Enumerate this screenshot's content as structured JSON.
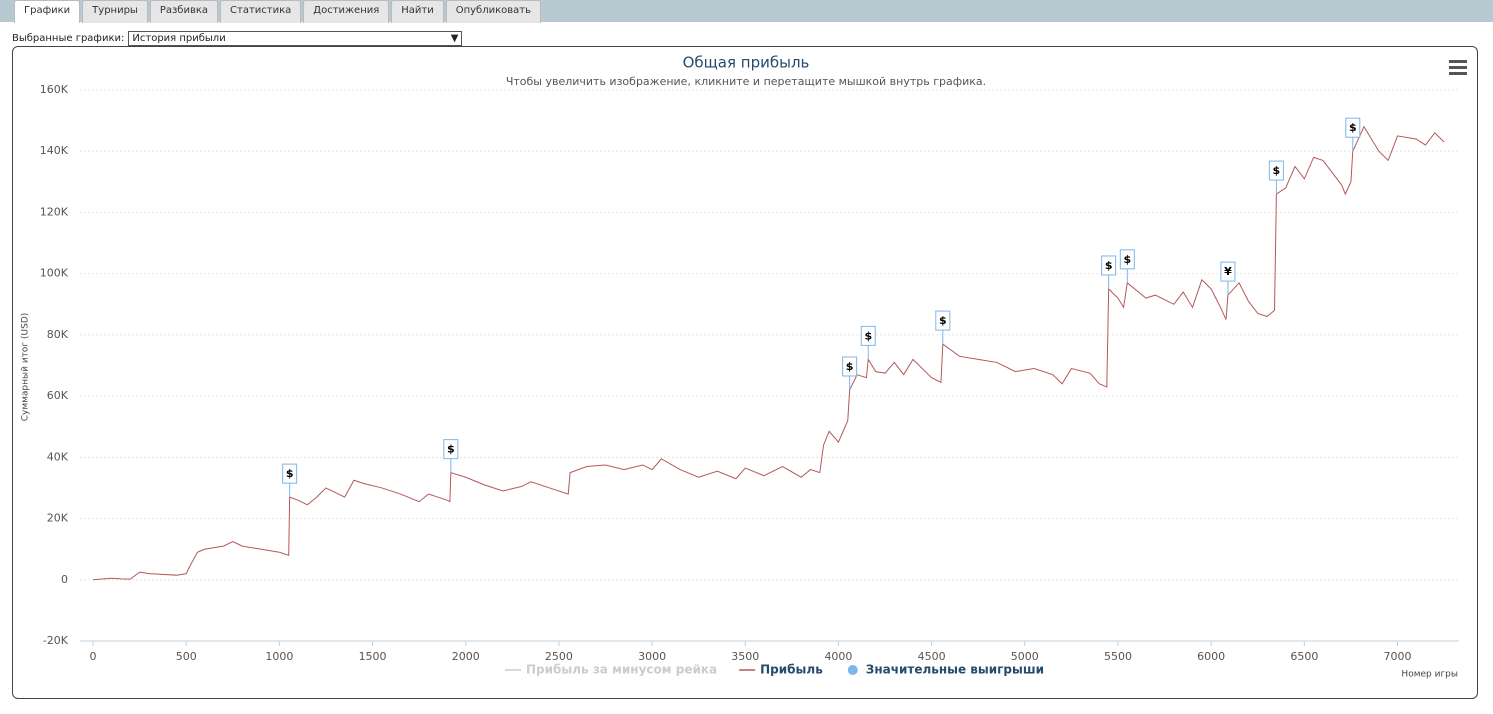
{
  "tabs": [
    "Графики",
    "Турниры",
    "Разбивка",
    "Статистика",
    "Достижения",
    "Найти",
    "Опубликовать"
  ],
  "selector": {
    "label": "Выбранные графики:",
    "value": "История прибыли"
  },
  "chart_data": {
    "type": "line",
    "title": "Общая прибыль",
    "subtitle": "Чтобы увеличить изображение, кликните и перетащите мышкой внутрь графика.",
    "y_label": "Суммарный итог (USD)",
    "x_label": "Номер игры",
    "xlim": [
      -70,
      7330
    ],
    "ylim": [
      -20000,
      160000
    ],
    "xticks": [
      0,
      500,
      1000,
      1500,
      2000,
      2500,
      3000,
      3500,
      4000,
      4500,
      5000,
      5500,
      6000,
      6500,
      7000
    ],
    "yticks": [
      {
        "value": -20000,
        "label": "-20K"
      },
      0,
      {
        "value": 20000,
        "label": "20K"
      },
      {
        "value": 40000,
        "label": "40K"
      },
      {
        "value": 60000,
        "label": "60K"
      },
      {
        "value": 80000,
        "label": "80K"
      },
      {
        "value": 100000,
        "label": "100K"
      },
      {
        "value": 120000,
        "label": "120K"
      },
      {
        "value": 140000,
        "label": "140K"
      },
      {
        "value": 160000,
        "label": "160K"
      }
    ],
    "grid": true,
    "series": [
      {
        "name": "Прибыль за минусом рейка",
        "color": "#cccccc",
        "visible": false
      },
      {
        "name": "Прибыль",
        "color": "#b5585a",
        "x": [
          0,
          100,
          150,
          200,
          250,
          300,
          450,
          500,
          520,
          560,
          600,
          700,
          750,
          800,
          900,
          1000,
          1050,
          1055,
          1100,
          1150,
          1200,
          1250,
          1350,
          1400,
          1450,
          1550,
          1650,
          1750,
          1800,
          1900,
          1915,
          1920,
          2000,
          2100,
          2200,
          2300,
          2350,
          2450,
          2550,
          2560,
          2650,
          2750,
          2850,
          2950,
          3000,
          3050,
          3150,
          3250,
          3350,
          3450,
          3500,
          3600,
          3700,
          3800,
          3850,
          3900,
          3920,
          3950,
          4000,
          4050,
          4060,
          4100,
          4150,
          4160,
          4200,
          4250,
          4300,
          4350,
          4400,
          4500,
          4550,
          4560,
          4650,
          4750,
          4850,
          4950,
          5050,
          5150,
          5200,
          5250,
          5350,
          5400,
          5440,
          5450,
          5500,
          5530,
          5550,
          5650,
          5700,
          5800,
          5850,
          5900,
          5950,
          6000,
          6050,
          6080,
          6090,
          6150,
          6200,
          6250,
          6300,
          6340,
          6350,
          6400,
          6450,
          6500,
          6550,
          6600,
          6700,
          6720,
          6750,
          6760,
          6820,
          6900,
          6950,
          7000,
          7100,
          7150,
          7200,
          7250
        ],
        "values": [
          0,
          500,
          300,
          200,
          2500,
          2000,
          1500,
          2000,
          4500,
          9000,
          10000,
          11000,
          12500,
          11000,
          10000,
          9000,
          8000,
          27000,
          26000,
          24500,
          27000,
          30000,
          27000,
          32500,
          31500,
          30000,
          28000,
          25500,
          28000,
          26000,
          25500,
          35000,
          33500,
          31000,
          29000,
          30500,
          32000,
          30000,
          28000,
          35000,
          37000,
          37500,
          36000,
          37500,
          36000,
          39500,
          36000,
          33500,
          35500,
          33000,
          36500,
          34000,
          37000,
          33500,
          36000,
          35000,
          44000,
          48500,
          45000,
          52000,
          62000,
          67000,
          66000,
          72000,
          68000,
          67500,
          71000,
          67000,
          72000,
          66000,
          64500,
          77000,
          73000,
          72000,
          71000,
          68000,
          69000,
          67000,
          64000,
          69000,
          67500,
          64000,
          63000,
          95000,
          92000,
          89000,
          97000,
          92000,
          93000,
          90000,
          94000,
          89000,
          98000,
          95000,
          89000,
          85000,
          93000,
          97000,
          91000,
          87000,
          86000,
          88000,
          126000,
          128000,
          135000,
          131000,
          138000,
          137000,
          129000,
          126000,
          130000,
          140000,
          148000,
          140000,
          137000,
          145000,
          144000,
          142000,
          146000,
          143000
        ]
      },
      {
        "name": "Значительные выигрыши",
        "color": "#7cb5ec",
        "marker": "flag",
        "x": [
          1055,
          1920,
          4060,
          4160,
          4560,
          5450,
          5550,
          6090,
          6350,
          6760
        ],
        "values": [
          27000,
          35000,
          62000,
          72000,
          77000,
          95000,
          97000,
          93000,
          126000,
          140000
        ],
        "labels": [
          "$",
          "$",
          "$",
          "$",
          "$",
          "$",
          "$",
          "¥",
          "$",
          "$"
        ]
      }
    ]
  }
}
